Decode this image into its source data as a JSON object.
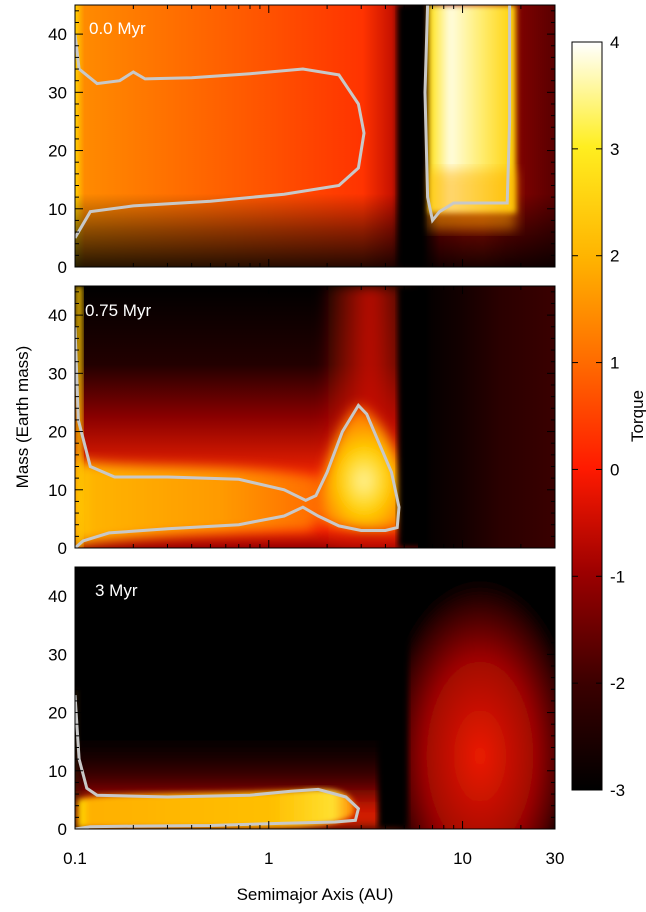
{
  "chart_data": {
    "type": "heatmap",
    "xlabel": "Semimajor Axis (AU)",
    "ylabel": "Mass (Earth mass)",
    "x_scale": "log",
    "xlim": [
      0.1,
      30
    ],
    "ylim": [
      0,
      45
    ],
    "x_ticks": [
      "0.1",
      "1",
      "10",
      "30"
    ],
    "y_ticks": [
      "0",
      "10",
      "20",
      "30",
      "40"
    ],
    "panels": [
      {
        "label": "0.0 Myr",
        "contour_upper": [
          [
            0.1,
            40
          ],
          [
            0.105,
            34
          ],
          [
            0.13,
            31.5
          ],
          [
            0.17,
            32
          ],
          [
            0.2,
            33.5
          ],
          [
            0.23,
            32.3
          ],
          [
            0.4,
            32.5
          ],
          [
            0.8,
            33.2
          ],
          [
            1.5,
            34
          ],
          [
            2.3,
            33
          ],
          [
            2.9,
            28
          ],
          [
            3.1,
            23
          ],
          [
            2.9,
            17
          ],
          [
            2.3,
            14
          ],
          [
            1.2,
            12.5
          ],
          [
            0.5,
            11.3
          ],
          [
            0.2,
            10.5
          ],
          [
            0.12,
            9.5
          ],
          [
            0.1,
            5
          ]
        ],
        "contour_outer": [
          [
            6.6,
            45
          ],
          [
            6.4,
            30
          ],
          [
            6.6,
            12
          ],
          [
            7.0,
            8
          ],
          [
            7.6,
            9.5
          ],
          [
            9,
            11
          ],
          [
            12,
            11
          ],
          [
            17,
            11
          ],
          [
            17.5,
            25
          ],
          [
            17.5,
            45
          ]
        ]
      },
      {
        "label": "0.75 Myr",
        "contour_upper": [
          [
            0.1,
            38
          ],
          [
            0.104,
            22
          ],
          [
            0.12,
            14
          ],
          [
            0.16,
            12.2
          ],
          [
            0.3,
            12.2
          ],
          [
            0.7,
            11.8
          ],
          [
            1.2,
            10
          ],
          [
            1.55,
            8.2
          ],
          [
            1.75,
            9
          ],
          [
            2.0,
            13
          ],
          [
            2.4,
            20
          ],
          [
            2.9,
            24.5
          ],
          [
            3.2,
            23
          ],
          [
            3.6,
            19
          ],
          [
            4.3,
            13
          ],
          [
            4.7,
            7
          ],
          [
            4.6,
            3.5
          ],
          [
            4.0,
            3
          ],
          [
            3,
            3
          ],
          [
            2.3,
            3.8
          ],
          [
            1.8,
            5.5
          ],
          [
            1.5,
            7
          ],
          [
            1.2,
            5.5
          ],
          [
            0.7,
            4
          ],
          [
            0.3,
            3.3
          ],
          [
            0.15,
            2.6
          ],
          [
            0.11,
            1.2
          ],
          [
            0.1,
            0
          ]
        ]
      },
      {
        "label": "3 Myr",
        "contour_upper": [
          [
            0.1,
            23
          ],
          [
            0.105,
            12
          ],
          [
            0.115,
            7
          ],
          [
            0.13,
            5.8
          ],
          [
            0.3,
            5.5
          ],
          [
            0.8,
            5.8
          ],
          [
            1.3,
            6.5
          ],
          [
            1.8,
            6.8
          ],
          [
            2.5,
            5.5
          ],
          [
            2.9,
            3.5
          ],
          [
            2.8,
            1.5
          ],
          [
            2.2,
            1.2
          ],
          [
            1.2,
            1.0
          ],
          [
            0.5,
            0.6
          ],
          [
            0.2,
            0.5
          ],
          [
            0.12,
            0.4
          ],
          [
            0.1,
            0
          ]
        ]
      }
    ],
    "colorbar": {
      "label": "Torque",
      "range": [
        -3,
        4
      ],
      "ticks": [
        "4",
        "3",
        "2",
        "1",
        "0",
        "-1",
        "-2",
        "-3"
      ],
      "colors": [
        "#000000",
        "#3a0000",
        "#9c0000",
        "#ff1a00",
        "#ff6a00",
        "#ffb300",
        "#ffee20",
        "#ffffff"
      ]
    }
  }
}
